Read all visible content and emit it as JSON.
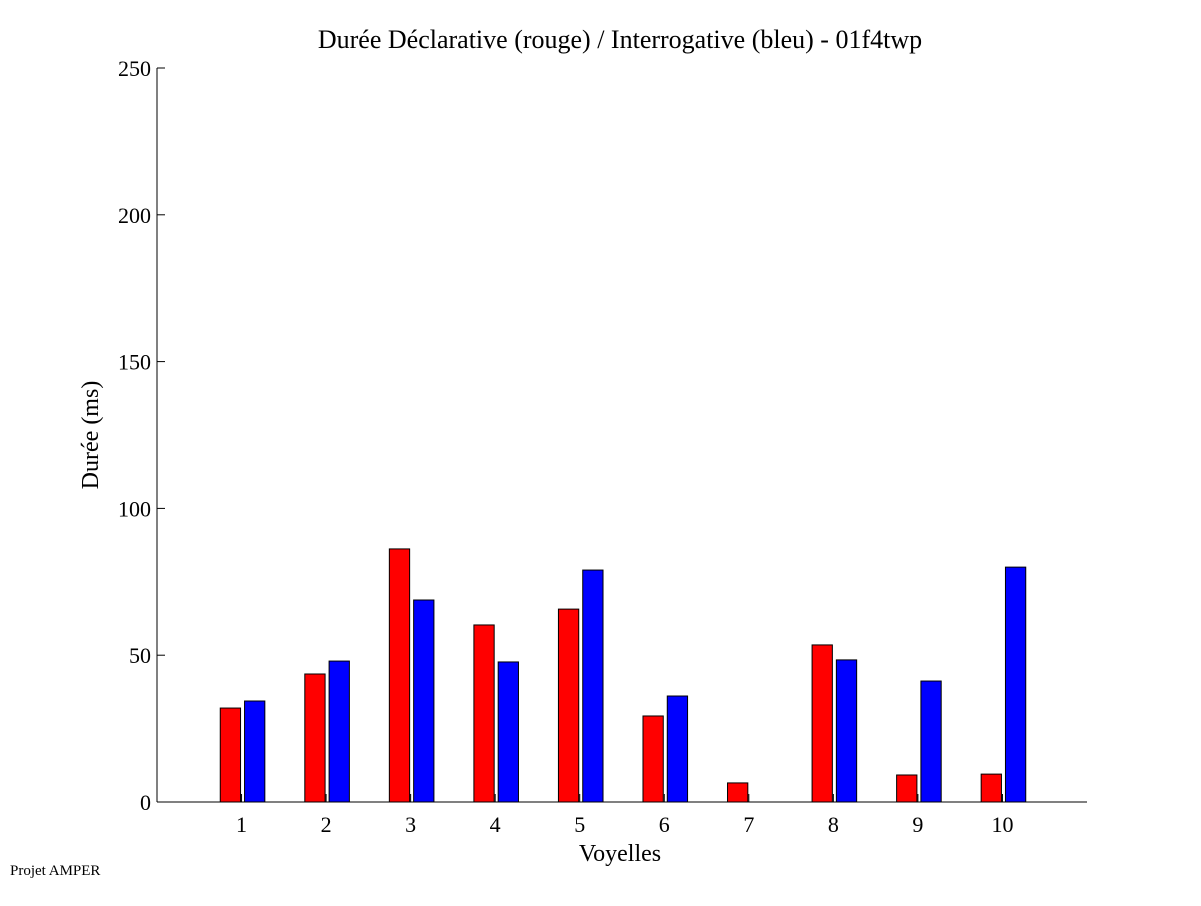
{
  "chart_data": {
    "type": "bar",
    "title": "Durée Déclarative (rouge) / Interrogative (bleu) - 01f4twp",
    "xlabel": "Voyelles",
    "ylabel": "Durée (ms)",
    "categories": [
      "1",
      "2",
      "3",
      "4",
      "5",
      "6",
      "7",
      "8",
      "9",
      "10"
    ],
    "series": [
      {
        "name": "Déclarative (rouge)",
        "color": "#ff0000",
        "values": [
          32.0,
          43.6,
          86.2,
          60.3,
          65.7,
          29.3,
          6.5,
          53.5,
          9.2,
          9.5
        ]
      },
      {
        "name": "Interrogative (bleu)",
        "color": "#0000ff",
        "values": [
          34.4,
          48.0,
          68.8,
          47.7,
          79.0,
          36.1,
          0,
          48.4,
          41.2,
          80.0
        ]
      }
    ],
    "xlim": [
      0,
      11
    ],
    "ylim": [
      0,
      250
    ],
    "yticks": [
      "0",
      "50",
      "100",
      "150",
      "200",
      "250"
    ],
    "grid": false
  },
  "footer": "Projet AMPER"
}
